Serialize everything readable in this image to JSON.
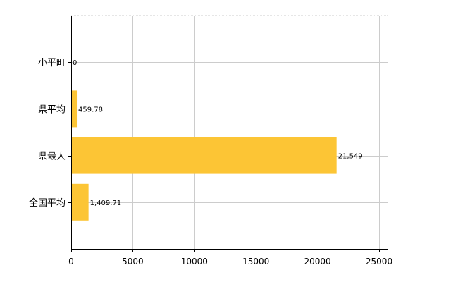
{
  "chart_data": {
    "type": "bar",
    "orientation": "horizontal",
    "categories": [
      "小平町",
      "県平均",
      "県最大",
      "全国平均"
    ],
    "values": [
      0,
      459.78,
      21549,
      1409.71
    ],
    "value_labels": [
      "0",
      "459.78",
      "21,549",
      "1,409.71"
    ],
    "xlim": [
      0,
      25000
    ],
    "xticks": [
      0,
      5000,
      10000,
      15000,
      20000,
      25000
    ],
    "xtick_labels": [
      "0",
      "5000",
      "10000",
      "15000",
      "20000",
      "25000"
    ],
    "title": "",
    "xlabel": "",
    "ylabel": "",
    "grid": true,
    "legend": "none",
    "colors": {
      "bar": "#FCC535",
      "grid": "#CCCCCC",
      "axis": "#000000"
    }
  }
}
